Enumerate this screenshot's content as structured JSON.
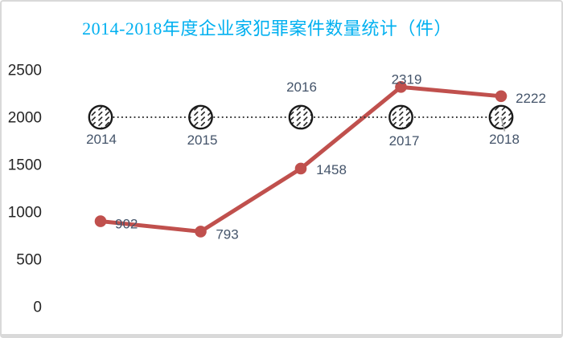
{
  "chart_data": {
    "type": "line",
    "title": "2014-2018年度企业家犯罪案件数量统计（件）",
    "categories": [
      "2014",
      "2015",
      "2016",
      "2017",
      "2018"
    ],
    "series": [
      {
        "name": "cases-count",
        "values": [
          902,
          793,
          1458,
          2319,
          2222
        ],
        "data_labels": [
          "902",
          "793",
          "1458",
          "2319",
          "2222"
        ],
        "color": "#C0504D",
        "line_style": "solid",
        "marker": "filled-circle"
      },
      {
        "name": "reference-2000",
        "values": [
          2000,
          2000,
          2000,
          2000,
          2000
        ],
        "data_labels": [
          "2014",
          "2015",
          "2016",
          "2017",
          "2018"
        ],
        "color": "#3A3A3A",
        "line_style": "dotted",
        "marker": "hatched-circle"
      }
    ],
    "xlabel": "",
    "ylabel": "",
    "ylim": [
      0,
      2500
    ],
    "yticks": [
      "0",
      "500",
      "1000",
      "1500",
      "2000",
      "2500"
    ],
    "grid": false,
    "legend": "none",
    "colors": {
      "title": "#00B0F0",
      "series_line": "#C0504D",
      "data_label": "#44546A",
      "axis_label": "#262626",
      "marker_outline": "#1A1A1A",
      "leader_line": "#A6A6A6",
      "frame_border": "#D9D9D9",
      "background": "#FFFFFF"
    }
  }
}
